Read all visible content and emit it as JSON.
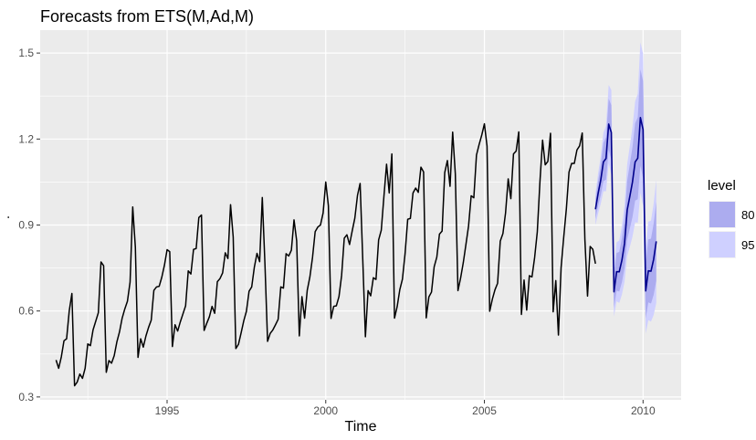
{
  "chart_data": {
    "type": "line",
    "title": "Forecasts from ETS(M,Ad,M)",
    "xlabel": "Time",
    "ylabel": ".",
    "xlim": [
      1991.0,
      2011.2
    ],
    "ylim": [
      0.29,
      1.58
    ],
    "x_ticks": [
      1995,
      2000,
      2005,
      2010
    ],
    "y_ticks": [
      0.3,
      0.6,
      0.9,
      1.2,
      1.5
    ],
    "y_tick_labels": [
      "0.3",
      "0.6",
      "0.9",
      "1.2",
      "1.5"
    ],
    "grid": true,
    "legend": {
      "title": "level",
      "position": "right",
      "entries": [
        {
          "label": "80",
          "color": "#acacef"
        },
        {
          "label": "95",
          "color": "#cfd0ff"
        }
      ]
    },
    "series": [
      {
        "role": "observed",
        "color": "#000000",
        "start": 1991.5,
        "frequency": 12,
        "values": [
          0.429,
          0.4,
          0.44,
          0.496,
          0.503,
          0.601,
          0.661,
          0.339,
          0.352,
          0.38,
          0.365,
          0.4,
          0.485,
          0.479,
          0.534,
          0.564,
          0.594,
          0.771,
          0.758,
          0.386,
          0.427,
          0.418,
          0.444,
          0.492,
          0.527,
          0.575,
          0.607,
          0.634,
          0.701,
          0.963,
          0.822,
          0.438,
          0.503,
          0.474,
          0.513,
          0.543,
          0.568,
          0.672,
          0.684,
          0.686,
          0.718,
          0.76,
          0.814,
          0.807,
          0.476,
          0.552,
          0.53,
          0.562,
          0.59,
          0.618,
          0.74,
          0.729,
          0.815,
          0.818,
          0.926,
          0.935,
          0.532,
          0.557,
          0.58,
          0.616,
          0.592,
          0.702,
          0.713,
          0.733,
          0.803,
          0.783,
          0.971,
          0.858,
          0.469,
          0.484,
          0.524,
          0.566,
          0.599,
          0.669,
          0.684,
          0.753,
          0.801,
          0.772,
          0.996,
          0.766,
          0.494,
          0.522,
          0.534,
          0.552,
          0.571,
          0.684,
          0.68,
          0.8,
          0.792,
          0.812,
          0.918,
          0.845,
          0.513,
          0.65,
          0.575,
          0.672,
          0.719,
          0.787,
          0.877,
          0.893,
          0.9,
          0.942,
          1.05,
          0.967,
          0.574,
          0.616,
          0.618,
          0.65,
          0.724,
          0.854,
          0.866,
          0.832,
          0.879,
          0.924,
          1.003,
          1.045,
          0.779,
          0.51,
          0.671,
          0.653,
          0.716,
          0.71,
          0.848,
          0.882,
          1.0,
          1.112,
          1.012,
          1.148,
          0.575,
          0.615,
          0.674,
          0.711,
          0.8,
          0.92,
          0.923,
          1.012,
          1.029,
          1.014,
          1.102,
          1.085,
          0.576,
          0.649,
          0.666,
          0.754,
          0.788,
          0.868,
          0.879,
          1.083,
          1.125,
          1.035,
          1.224,
          1.079,
          0.671,
          0.715,
          0.768,
          0.831,
          0.896,
          1.002,
          0.995,
          1.144,
          1.181,
          1.214,
          1.253,
          1.175,
          0.599,
          0.641,
          0.674,
          0.697,
          0.844,
          0.87,
          0.942,
          1.061,
          0.992,
          1.148,
          1.158,
          1.225,
          0.588,
          0.708,
          0.603,
          0.723,
          0.719,
          0.787,
          0.876,
          1.05,
          1.196,
          1.11,
          1.122,
          1.22,
          0.597,
          0.706,
          0.516,
          0.751,
          0.858,
          0.957,
          1.085,
          1.115,
          1.115,
          1.162,
          1.176,
          1.221,
          0.85,
          0.652,
          0.825,
          0.815,
          0.765
        ]
      },
      {
        "role": "forecast",
        "color": "#00008b",
        "start": 2008.5,
        "frequency": 12,
        "mean": [
          0.955,
          1.01,
          1.057,
          1.12,
          1.132,
          1.252,
          1.223,
          0.667,
          0.737,
          0.737,
          0.777,
          0.836,
          0.952,
          1.0,
          1.05,
          1.12,
          1.133,
          1.275,
          1.233,
          0.67,
          0.74,
          0.739,
          0.78,
          0.843
        ],
        "lo80": [
          0.921,
          0.967,
          1.004,
          1.053,
          1.058,
          1.163,
          1.128,
          0.611,
          0.671,
          0.668,
          0.7,
          0.75,
          0.85,
          0.888,
          0.928,
          0.985,
          0.99,
          1.107,
          1.064,
          0.574,
          0.63,
          0.626,
          0.656,
          0.705
        ],
        "hi80": [
          0.989,
          1.053,
          1.11,
          1.187,
          1.206,
          1.341,
          1.318,
          0.723,
          0.803,
          0.806,
          0.854,
          0.922,
          1.054,
          1.112,
          1.172,
          1.255,
          1.276,
          1.443,
          1.402,
          0.766,
          0.85,
          0.852,
          0.904,
          0.981
        ],
        "lo95": [
          0.9,
          0.94,
          0.974,
          1.018,
          1.018,
          1.115,
          1.075,
          0.58,
          0.634,
          0.628,
          0.657,
          0.702,
          0.792,
          0.824,
          0.859,
          0.909,
          0.908,
          1.012,
          0.968,
          0.521,
          0.568,
          0.563,
          0.586,
          0.628
        ],
        "hi95": [
          1.01,
          1.08,
          1.14,
          1.222,
          1.246,
          1.389,
          1.371,
          0.754,
          0.84,
          0.846,
          0.897,
          0.97,
          1.112,
          1.176,
          1.241,
          1.331,
          1.358,
          1.538,
          1.498,
          0.819,
          0.912,
          0.915,
          0.974,
          1.058
        ]
      }
    ]
  }
}
